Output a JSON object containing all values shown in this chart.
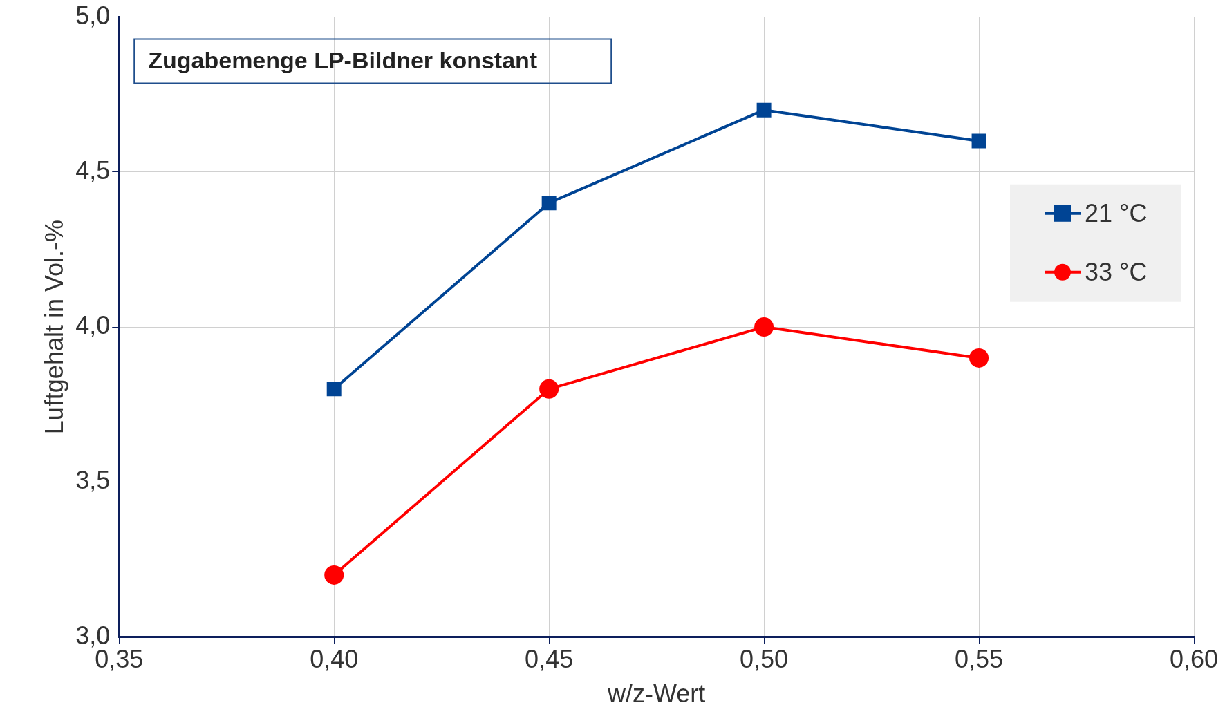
{
  "chart_data": {
    "type": "line",
    "xlabel": "w/z-Wert",
    "ylabel": "Luftgehalt in Vol.-%",
    "annotations": [
      "Zugabemenge LP-Bildner konstant"
    ],
    "x": [
      0.4,
      0.45,
      0.5,
      0.55
    ],
    "series": [
      {
        "name": "21 °C",
        "color": "#004494",
        "marker": "square",
        "values": [
          3.8,
          4.4,
          4.7,
          4.6
        ]
      },
      {
        "name": "33 °C",
        "color": "#ff0000",
        "marker": "circle",
        "values": [
          3.2,
          3.8,
          4.0,
          3.9
        ]
      }
    ],
    "xlim": [
      0.35,
      0.6
    ],
    "xticks": [
      {
        "value": 0.35,
        "label": "0,35"
      },
      {
        "value": 0.4,
        "label": "0,40"
      },
      {
        "value": 0.45,
        "label": "0,45"
      },
      {
        "value": 0.5,
        "label": "0,50"
      },
      {
        "value": 0.55,
        "label": "0,55"
      },
      {
        "value": 0.6,
        "label": "0,60"
      }
    ],
    "ylim": [
      3.0,
      5.0
    ],
    "yticks": [
      {
        "value": 3.0,
        "label": "3,0"
      },
      {
        "value": 3.5,
        "label": "3,5"
      },
      {
        "value": 4.0,
        "label": "4,0"
      },
      {
        "value": 4.5,
        "label": "4,5"
      },
      {
        "value": 5.0,
        "label": "5,0"
      }
    ],
    "grid": true,
    "legend": "right",
    "line_style": "solid"
  }
}
